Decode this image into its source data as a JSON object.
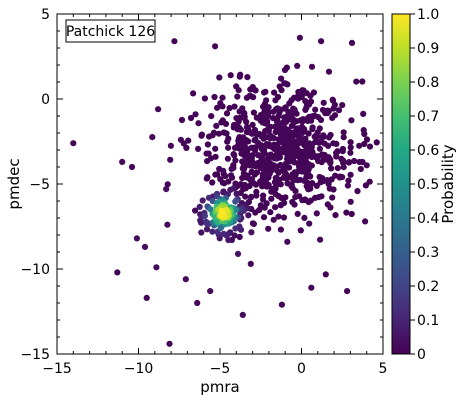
{
  "chart_data": {
    "type": "scatter",
    "title": "",
    "legend": {
      "label": "Patchick 126",
      "placement": "top-left"
    },
    "xlabel": "pmra",
    "ylabel": "pmdec",
    "xlim": [
      -15,
      5
    ],
    "ylim": [
      -15,
      5
    ],
    "xticks": [
      -15,
      -10,
      -5,
      0,
      5
    ],
    "yticks": [
      -15,
      -10,
      -5,
      0,
      5
    ],
    "xtick_labels": [
      "−15",
      "−10",
      "−5",
      "0",
      "5"
    ],
    "ytick_labels": [
      "−15",
      "−10",
      "−5",
      "0",
      "5"
    ],
    "colorbar": {
      "label": "Probability",
      "range": [
        0,
        1
      ],
      "ticks": [
        0,
        0.1,
        0.2,
        0.3,
        0.4,
        0.5,
        0.6,
        0.7,
        0.8,
        0.9,
        1.0
      ],
      "tick_labels": [
        "0",
        "0.1",
        "0.2",
        "0.3",
        "0.4",
        "0.5",
        "0.6",
        "0.7",
        "0.8",
        "0.9",
        "1.0"
      ],
      "colormap": "viridis"
    },
    "cluster_center": {
      "x": -4.8,
      "y": -6.7
    },
    "outliers": [
      {
        "x": -14.0,
        "y": -2.6,
        "p": 0.01
      },
      {
        "x": -9.5,
        "y": -11.7,
        "p": 0.01
      },
      {
        "x": -8.1,
        "y": -14.4,
        "p": 0.01
      },
      {
        "x": -11.3,
        "y": -10.2,
        "p": 0.01
      },
      {
        "x": -11.0,
        "y": -3.7,
        "p": 0.02
      },
      {
        "x": -10.4,
        "y": -4.0,
        "p": 0.02
      },
      {
        "x": -9.6,
        "y": -8.7,
        "p": 0.03
      },
      {
        "x": -8.9,
        "y": -9.9,
        "p": 0.03
      },
      {
        "x": -10.1,
        "y": -8.2,
        "p": 0.03
      },
      {
        "x": -7.8,
        "y": 3.4,
        "p": 0.01
      },
      {
        "x": -5.3,
        "y": 3.1,
        "p": 0.01
      },
      {
        "x": -0.1,
        "y": 3.6,
        "p": 0.01
      },
      {
        "x": 1.2,
        "y": 3.4,
        "p": 0.01
      },
      {
        "x": 3.1,
        "y": 3.3,
        "p": 0.01
      },
      {
        "x": -8.8,
        "y": -0.6,
        "p": 0.01
      },
      {
        "x": -6.5,
        "y": -0.9,
        "p": 0.02
      },
      {
        "x": -7.4,
        "y": -2.4,
        "p": 0.02
      },
      {
        "x": -8.3,
        "y": -5.3,
        "p": 0.04
      },
      {
        "x": -6.4,
        "y": -12.0,
        "p": 0.02
      },
      {
        "x": -3.6,
        "y": -12.7,
        "p": 0.02
      },
      {
        "x": -1.2,
        "y": -12.1,
        "p": 0.01
      },
      {
        "x": 0.6,
        "y": -11.1,
        "p": 0.01
      },
      {
        "x": 2.8,
        "y": -11.3,
        "p": 0.01
      },
      {
        "x": 3.9,
        "y": -7.2,
        "p": 0.01
      },
      {
        "x": 4.2,
        "y": -2.8,
        "p": 0.01
      },
      {
        "x": 4.0,
        "y": -3.9,
        "p": 0.01
      },
      {
        "x": -7.1,
        "y": -10.6,
        "p": 0.02
      },
      {
        "x": -5.6,
        "y": -11.3,
        "p": 0.02
      }
    ],
    "field_seed": 20240613,
    "field_count": 760,
    "field_spread": {
      "x_mean": -1.3,
      "y_mean": -3.1,
      "x_sd": 2.3,
      "y_sd": 2.0
    },
    "cluster_count": 120,
    "cluster_spread": {
      "x_sd": 0.75,
      "y_sd": 0.75
    }
  }
}
